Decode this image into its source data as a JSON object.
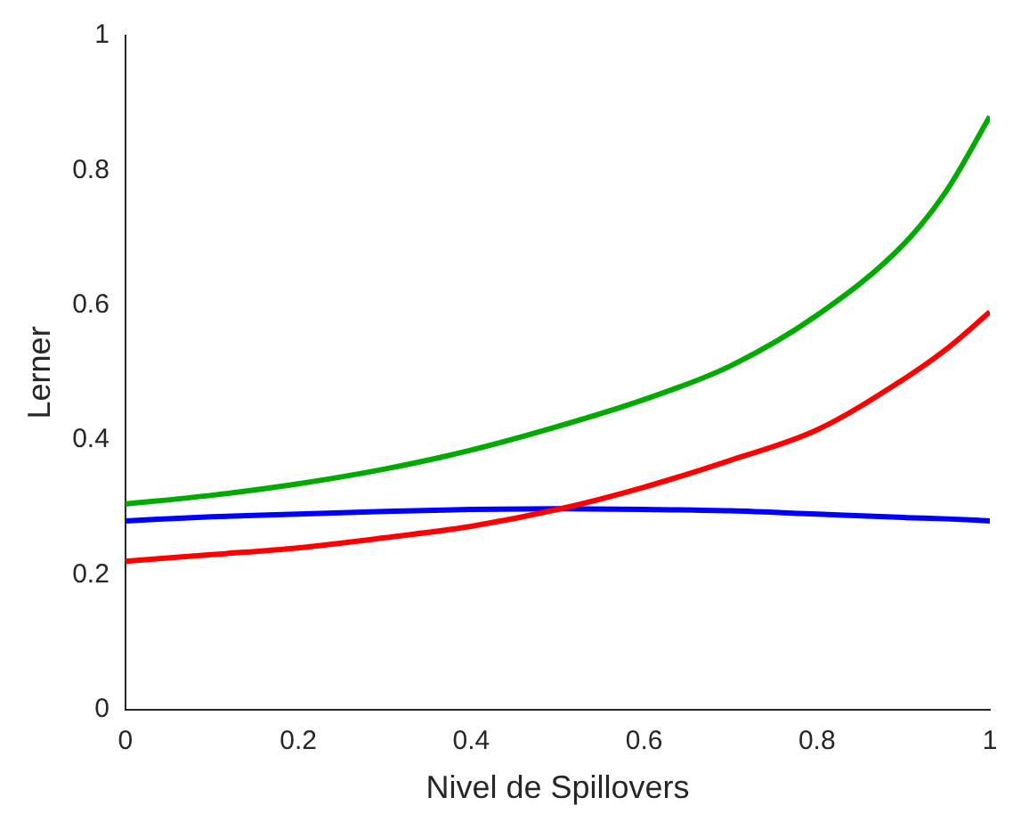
{
  "chart_data": {
    "type": "line",
    "xlabel": "Nivel de Spillovers",
    "ylabel": "Lerner",
    "x": [
      0,
      0.1,
      0.2,
      0.3,
      0.4,
      0.5,
      0.6,
      0.7,
      0.8,
      0.9,
      0.95,
      1
    ],
    "series": [
      {
        "color": "#00aa00",
        "values": [
          0.305,
          0.318,
          0.335,
          0.357,
          0.385,
          0.42,
          0.46,
          0.51,
          0.585,
          0.69,
          0.77,
          0.88
        ]
      },
      {
        "color": "#ff0000",
        "values": [
          0.22,
          0.23,
          0.24,
          0.255,
          0.272,
          0.297,
          0.33,
          0.37,
          0.415,
          0.49,
          0.535,
          0.59
        ]
      },
      {
        "color": "#0000ff",
        "values": [
          0.28,
          0.286,
          0.29,
          0.294,
          0.297,
          0.298,
          0.297,
          0.295,
          0.29,
          0.285,
          0.283,
          0.28
        ]
      }
    ],
    "xlim": [
      0,
      1
    ],
    "xticks": [
      0,
      0.2,
      0.4,
      0.6,
      0.8,
      1
    ],
    "ylim": [
      0,
      1
    ],
    "yticks": [
      0,
      0.2,
      0.4,
      0.6,
      0.8,
      1
    ],
    "grid": false,
    "legend": false,
    "marker": "none",
    "line_style": "solid"
  }
}
